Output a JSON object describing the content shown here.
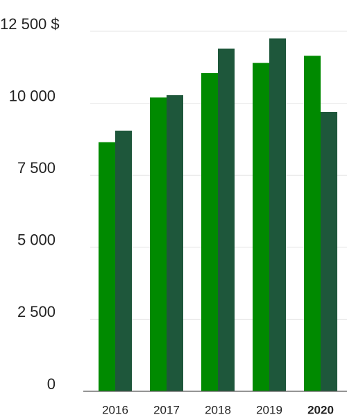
{
  "chart_data": {
    "type": "bar",
    "categories": [
      "2016",
      "2017",
      "2018",
      "2019",
      "2020"
    ],
    "bold_categories": [
      4
    ],
    "series": [
      {
        "color": "#008a00",
        "values": [
          8650,
          10200,
          11050,
          11400,
          11650
        ]
      },
      {
        "color": "#1e573b",
        "values": [
          9050,
          10280,
          11900,
          12250,
          9700
        ]
      }
    ],
    "ylim": [
      0,
      12500
    ],
    "yticks": [
      0,
      {
        "value": 2500,
        "label": "2 500"
      },
      {
        "value": 5000,
        "label": "5 000"
      },
      {
        "value": 7500,
        "label": "7 500"
      },
      {
        "value": 10000,
        "label": "10 000"
      },
      {
        "value": 12500,
        "label": "12 500 $"
      }
    ],
    "grid": true
  }
}
